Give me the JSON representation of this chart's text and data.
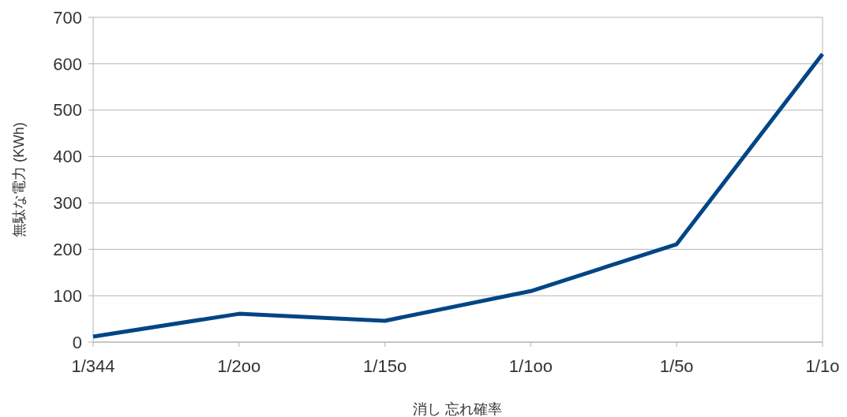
{
  "chart_data": {
    "type": "line",
    "xlabel": "消し 忘れ確率",
    "ylabel": "無駄な電力 (KWh)",
    "categories": [
      "1/344",
      "1/2oo",
      "1/15o",
      "1/1oo",
      "1/5o",
      "1/1o"
    ],
    "series": [
      {
        "color": "#004586",
        "values": [
          12,
          61,
          46,
          110,
          211,
          621
        ]
      }
    ],
    "ylim": [
      0,
      700
    ],
    "yticks": [
      0,
      100,
      200,
      300,
      400,
      500,
      600,
      700
    ],
    "grid": "y",
    "marker": "none",
    "line_style": "solid"
  }
}
